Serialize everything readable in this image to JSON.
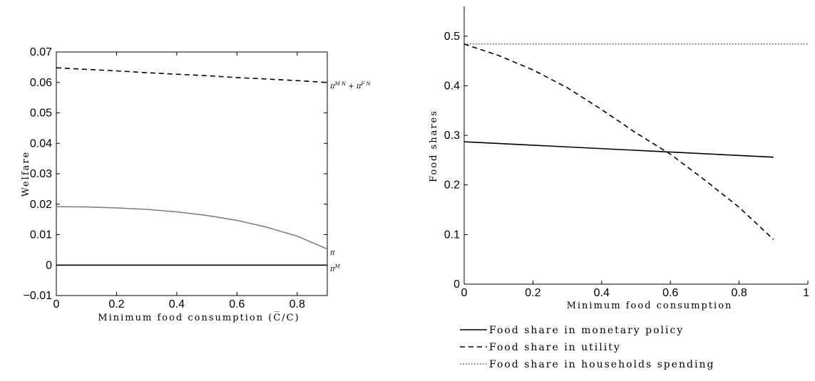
{
  "chart_data": [
    {
      "type": "line",
      "title": "",
      "xlabel": "Minimum food consumption (C̅/C)",
      "ylabel": "Welfare",
      "xlim": [
        0,
        0.9
      ],
      "ylim": [
        -0.01,
        0.07
      ],
      "xticks": [
        0,
        0.2,
        0.4,
        0.6,
        0.8
      ],
      "xtick_labels": [
        "0",
        "0.2",
        "0.4",
        "0.6",
        "0.8"
      ],
      "yticks": [
        -0.01,
        0,
        0.01,
        0.02,
        0.03,
        0.04,
        0.05,
        0.06,
        0.07
      ],
      "ytick_labels": [
        "−0.01",
        "0",
        "0.01",
        "0.02",
        "0.03",
        "0.04",
        "0.05",
        "0.06",
        "0.07"
      ],
      "grid": false,
      "x": [
        0,
        0.1,
        0.2,
        0.3,
        0.4,
        0.5,
        0.6,
        0.7,
        0.8,
        0.9
      ],
      "series": [
        {
          "name": "πMN + πFN",
          "style": "dashed",
          "color": "#000000",
          "values": [
            0.0648,
            0.0643,
            0.0638,
            0.0632,
            0.0627,
            0.0622,
            0.0616,
            0.0611,
            0.0606,
            0.06
          ]
        },
        {
          "name": "π",
          "style": "solid",
          "color": "#808080",
          "values": [
            0.0192,
            0.0191,
            0.0188,
            0.0183,
            0.0175,
            0.0163,
            0.0147,
            0.0124,
            0.0095,
            0.0053
          ]
        },
        {
          "name": "πM",
          "style": "solid",
          "color": "#000000",
          "values": [
            0,
            0,
            0,
            0,
            0,
            0,
            0,
            0,
            0,
            0
          ]
        }
      ],
      "annotations": [
        {
          "text": "π",
          "sup": "M N",
          "text2": "+ π",
          "sup2": "F N",
          "at_series": 0
        },
        {
          "text": "π",
          "sup": "",
          "at_series": 1,
          "color": "#808080"
        },
        {
          "text": "π",
          "sup": "M",
          "at_series": 2
        }
      ]
    },
    {
      "type": "line",
      "title": "",
      "xlabel": "Minimum food consumption",
      "ylabel": "Food shares",
      "xlim": [
        0,
        1
      ],
      "ylim": [
        0,
        0.56
      ],
      "xticks": [
        0,
        0.2,
        0.4,
        0.6,
        0.8,
        1
      ],
      "xtick_labels": [
        "0",
        "0.2",
        "0.4",
        "0.6",
        "0.8",
        "1"
      ],
      "yticks": [
        0,
        0.1,
        0.2,
        0.3,
        0.4,
        0.5
      ],
      "ytick_labels": [
        "0",
        "0.1",
        "0.2",
        "0.3",
        "0.4",
        "0.5"
      ],
      "grid": false,
      "legend_position": "below",
      "series": [
        {
          "name": "Food share in monetary policy",
          "style": "solid",
          "color": "#000000",
          "x": [
            0,
            0.9
          ],
          "values": [
            0.287,
            0.256
          ]
        },
        {
          "name": "Food share in utility",
          "style": "dashed",
          "color": "#000000",
          "x": [
            0,
            0.1,
            0.2,
            0.3,
            0.4,
            0.5,
            0.6,
            0.7,
            0.8,
            0.9
          ],
          "values": [
            0.484,
            0.461,
            0.432,
            0.396,
            0.352,
            0.305,
            0.262,
            0.21,
            0.155,
            0.09
          ]
        },
        {
          "name": "Food share in households spending",
          "style": "dotted",
          "color": "#000000",
          "x": [
            0,
            1
          ],
          "values": [
            0.484,
            0.484
          ]
        }
      ]
    }
  ]
}
